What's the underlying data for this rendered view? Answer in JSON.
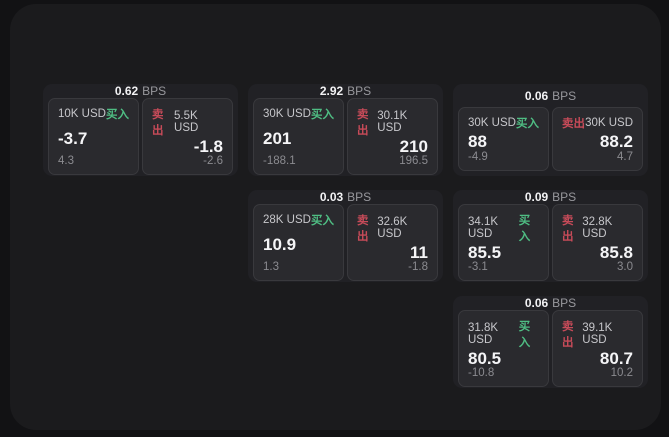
{
  "labels": {
    "bps_suffix": "BPS",
    "buy": "买入",
    "sell": "卖出"
  },
  "colors": {
    "buy": "#4fbd83",
    "sell": "#c74b59",
    "panel_bg": "#1b1b1d",
    "card_bg": "#212125",
    "subcard_bg": "#2a2a2e"
  },
  "cards": [
    {
      "bps": "0.62",
      "buy": {
        "amount": "10K USD",
        "price": "-3.7",
        "delta": "4.3"
      },
      "sell": {
        "amount": "5.5K USD",
        "price": "-1.8",
        "delta": "-2.6"
      }
    },
    {
      "bps": "2.92",
      "buy": {
        "amount": "30K USD",
        "price": "201",
        "delta": "-188.1"
      },
      "sell": {
        "amount": "30.1K USD",
        "price": "210",
        "delta": "196.5"
      }
    },
    {
      "bps": "0.06",
      "buy": {
        "amount": "30K USD",
        "price": "88",
        "delta": "-4.9"
      },
      "sell": {
        "amount": "30K USD",
        "price": "88.2",
        "delta": "4.7"
      }
    },
    {
      "bps": "0.03",
      "buy": {
        "amount": "28K USD",
        "price": "10.9",
        "delta": "1.3"
      },
      "sell": {
        "amount": "32.6K USD",
        "price": "11",
        "delta": "-1.8"
      }
    },
    {
      "bps": "0.09",
      "buy": {
        "amount": "34.1K USD",
        "price": "85.5",
        "delta": "-3.1"
      },
      "sell": {
        "amount": "32.8K USD",
        "price": "85.8",
        "delta": "3.0"
      }
    },
    {
      "bps": "0.06",
      "buy": {
        "amount": "31.8K USD",
        "price": "80.5",
        "delta": "-10.8"
      },
      "sell": {
        "amount": "39.1K USD",
        "price": "80.7",
        "delta": "10.2"
      }
    }
  ]
}
